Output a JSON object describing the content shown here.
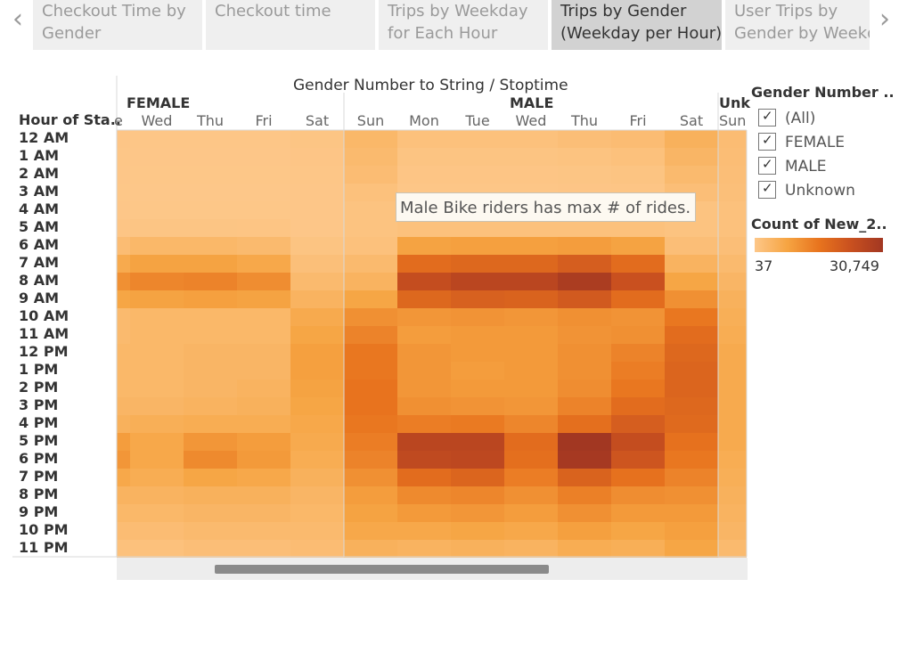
{
  "tabs": {
    "prev_icon": "chevron-left-icon",
    "next_icon": "chevron-right-icon",
    "items": [
      {
        "line1": "Checkout Time by",
        "line2": "Gender",
        "active": false
      },
      {
        "line1": "Checkout time",
        "line2": "",
        "active": false
      },
      {
        "line1": "Trips by Weekday",
        "line2": "for Each Hour",
        "active": false
      },
      {
        "line1": "Trips by Gender",
        "line2": "(Weekday per Hour)",
        "active": true
      },
      {
        "line1": "User Trips by",
        "line2": "Gender by Weekday",
        "active": false
      }
    ]
  },
  "tooltip": "Male Bike riders has max # of rides.",
  "filter": {
    "title": "Gender Number ..",
    "items": [
      {
        "label": "(All)",
        "checked": true
      },
      {
        "label": "FEMALE",
        "checked": true
      },
      {
        "label": "MALE",
        "checked": true
      },
      {
        "label": "Unknown",
        "checked": true
      }
    ]
  },
  "color_legend": {
    "title": "Count of New_2..",
    "min_label": "37",
    "max_label": "30,749",
    "colors": [
      "#fdc789",
      "#f6a543",
      "#e8741e",
      "#c9501f",
      "#a23722"
    ]
  },
  "chart_data": {
    "type": "heatmap",
    "title": "Gender Number to String / Stoptime",
    "row_header": "Hour of Sta..",
    "rows": [
      "12 AM",
      "1 AM",
      "2 AM",
      "3 AM",
      "4 AM",
      "5 AM",
      "6 AM",
      "7 AM",
      "8 AM",
      "9 AM",
      "10 AM",
      "11 AM",
      "12 PM",
      "1 PM",
      "2 PM",
      "3 PM",
      "4 PM",
      "5 PM",
      "6 PM",
      "7 PM",
      "8 PM",
      "9 PM",
      "10 PM",
      "11 PM"
    ],
    "groups": [
      {
        "name": "FEMALE",
        "label_shown": "FEMALE",
        "columns": [
          "e",
          "Wed",
          "Thu",
          "Fri",
          "Sat"
        ]
      },
      {
        "name": "MALE",
        "label_shown": "MALE",
        "columns": [
          "Sun",
          "Mon",
          "Tue",
          "Wed",
          "Thu",
          "Fri",
          "Sat"
        ]
      },
      {
        "name": "Unknown",
        "label_shown": "Unk",
        "columns": [
          "Sun"
        ]
      }
    ],
    "color_range": [
      37,
      30749
    ],
    "values": {
      "FEMALE": [
        [
          400,
          300,
          300,
          300,
          600
        ],
        [
          250,
          200,
          200,
          200,
          400
        ],
        [
          150,
          120,
          120,
          120,
          300
        ],
        [
          100,
          80,
          80,
          80,
          200
        ],
        [
          150,
          120,
          120,
          120,
          150
        ],
        [
          500,
          600,
          600,
          550,
          200
        ],
        [
          2500,
          3500,
          3500,
          3000,
          800
        ],
        [
          6500,
          8000,
          8000,
          7000,
          1800
        ],
        [
          11000,
          12500,
          13000,
          11500,
          3000
        ],
        [
          7500,
          8000,
          8500,
          8000,
          4500
        ],
        [
          3000,
          3500,
          3500,
          3500,
          6500
        ],
        [
          3000,
          3500,
          3500,
          3500,
          7500
        ],
        [
          3500,
          3500,
          4000,
          4000,
          8500
        ],
        [
          3500,
          3500,
          4000,
          4000,
          8500
        ],
        [
          3500,
          3500,
          4000,
          4500,
          8000
        ],
        [
          4000,
          4000,
          4500,
          5000,
          7500
        ],
        [
          5000,
          5500,
          6000,
          6000,
          7000
        ],
        [
          9000,
          7000,
          10000,
          9000,
          6500
        ],
        [
          10000,
          7000,
          12000,
          9500,
          6000
        ],
        [
          7000,
          6000,
          7500,
          7000,
          5000
        ],
        [
          4500,
          4500,
          5000,
          5000,
          4000
        ],
        [
          3500,
          3500,
          4000,
          4000,
          3500
        ],
        [
          2500,
          2500,
          3000,
          3000,
          3000
        ],
        [
          1500,
          1500,
          2000,
          2000,
          2500
        ]
      ],
      "MALE": [
        [
          3500,
          1500,
          1500,
          1500,
          2000,
          2500,
          5000
        ],
        [
          3000,
          800,
          800,
          800,
          1000,
          1500,
          4000
        ],
        [
          2500,
          500,
          500,
          500,
          600,
          800,
          3000
        ],
        [
          1500,
          300,
          300,
          300,
          400,
          500,
          2000
        ],
        [
          1000,
          300,
          300,
          300,
          300,
          300,
          1000
        ],
        [
          1000,
          1500,
          1500,
          1500,
          1500,
          1500,
          1000
        ],
        [
          1500,
          8000,
          8500,
          8500,
          9000,
          8000,
          2000
        ],
        [
          3000,
          17000,
          18000,
          18000,
          20000,
          17000,
          4500
        ],
        [
          4500,
          24000,
          26000,
          26000,
          29000,
          23000,
          7500
        ],
        [
          7500,
          18000,
          19500,
          19000,
          21000,
          17000,
          11000
        ],
        [
          11000,
          10000,
          10500,
          10000,
          11000,
          10500,
          15000
        ],
        [
          13000,
          9000,
          9500,
          9500,
          10500,
          11000,
          17000
        ],
        [
          15000,
          10000,
          9500,
          9500,
          11000,
          13000,
          18000
        ],
        [
          15000,
          10000,
          9000,
          9500,
          11000,
          14000,
          18500
        ],
        [
          15500,
          10000,
          9500,
          9500,
          11500,
          15000,
          18500
        ],
        [
          15500,
          11000,
          10500,
          10000,
          13000,
          17000,
          18000
        ],
        [
          15000,
          14000,
          14500,
          12500,
          16500,
          20000,
          17500
        ],
        [
          14000,
          26000,
          26000,
          17000,
          30749,
          24000,
          16000
        ],
        [
          13000,
          25000,
          25500,
          16500,
          30000,
          22000,
          15000
        ],
        [
          11000,
          17000,
          18500,
          14000,
          19000,
          16000,
          13000
        ],
        [
          9000,
          12000,
          12500,
          11000,
          13500,
          11500,
          11000
        ],
        [
          8000,
          9500,
          10000,
          9000,
          11000,
          9500,
          9500
        ],
        [
          7000,
          7000,
          7500,
          7000,
          8500,
          7500,
          8500
        ],
        [
          5000,
          4500,
          5000,
          4500,
          6000,
          5500,
          7500
        ]
      ],
      "Unknown": [
        [
          2500
        ],
        [
          2200
        ],
        [
          2000
        ],
        [
          1800
        ],
        [
          1500
        ],
        [
          1500
        ],
        [
          2000
        ],
        [
          3000
        ],
        [
          4000
        ],
        [
          5000
        ],
        [
          5500
        ],
        [
          6000
        ],
        [
          6500
        ],
        [
          6500
        ],
        [
          6500
        ],
        [
          6500
        ],
        [
          6500
        ],
        [
          6500
        ],
        [
          6000
        ],
        [
          5500
        ],
        [
          5000
        ],
        [
          4500
        ],
        [
          4000
        ],
        [
          3000
        ]
      ]
    }
  }
}
